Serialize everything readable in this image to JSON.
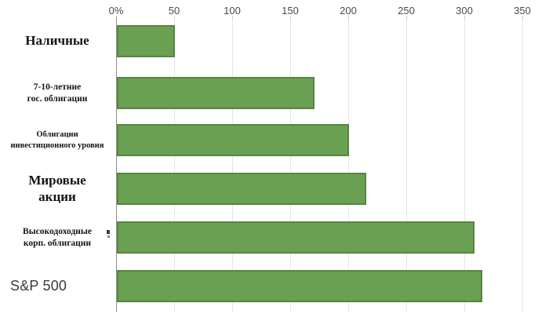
{
  "chart_data": {
    "type": "bar",
    "orientation": "horizontal",
    "title": "",
    "xlabel": "",
    "ylabel": "",
    "unit": "%",
    "xlim": [
      0,
      350
    ],
    "x_ticks": [
      "0%",
      "50",
      "100",
      "150",
      "200",
      "250",
      "300",
      "350"
    ],
    "grid": true,
    "legend": false,
    "bar_color": "#6aa052",
    "bar_border_color": "#568640",
    "categories": [
      "Наличные",
      "7-10-летние гос. облигации",
      "Облигации инвестиционного уровня",
      "Мировые акции",
      "Высокодоходные корп. облигации",
      "S&P 500"
    ],
    "values": [
      50,
      170,
      200,
      215,
      308,
      315
    ]
  },
  "labels": {
    "cash": {
      "line1": "Наличные"
    },
    "treasuries": {
      "line1": "7-10-летние",
      "line2": "гос. облигации"
    },
    "ig_bonds": {
      "line1": "Облигации",
      "line2": "инвестиционного уровня"
    },
    "world_equities": {
      "line1": "Мировые",
      "line2": "акции"
    },
    "hy_bonds": {
      "line1": "Высокодоходные",
      "line2": "корп. облигации"
    },
    "sp500": {
      "line1": "S&P 500"
    }
  }
}
